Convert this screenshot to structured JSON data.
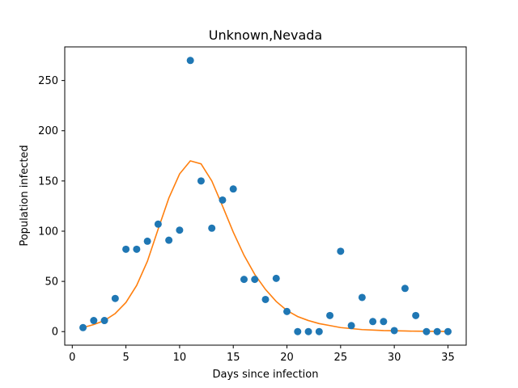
{
  "chart_data": {
    "type": "scatter",
    "title": "Unknown,Nevada",
    "xlabel": "Days since infection",
    "ylabel": "Population infected",
    "xlim": [
      -0.7,
      36.7
    ],
    "ylim": [
      -13.5,
      283.5
    ],
    "xticks": [
      0,
      5,
      10,
      15,
      20,
      25,
      30,
      35
    ],
    "yticks": [
      0,
      50,
      100,
      150,
      200,
      250
    ],
    "grid": false,
    "colors": {
      "scatter": "#1f77b4",
      "fit": "#ff7f0e"
    },
    "series": [
      {
        "kind": "scatter",
        "x": [
          1,
          2,
          3,
          4,
          5,
          6,
          7,
          8,
          9,
          10,
          11,
          12,
          13,
          14,
          15,
          16,
          17,
          18,
          19,
          20,
          21,
          22,
          23,
          24,
          25,
          26,
          27,
          28,
          29,
          30,
          31,
          32,
          33,
          34,
          35
        ],
        "y": [
          4,
          11,
          11,
          33,
          82,
          82,
          90,
          107,
          91,
          101,
          270,
          150,
          103,
          131,
          142,
          52,
          52,
          32,
          53,
          20,
          0,
          0,
          0,
          16,
          80,
          6,
          34,
          10,
          10,
          1,
          43,
          16,
          0,
          0,
          0
        ]
      },
      {
        "kind": "line",
        "x": [
          1,
          2,
          3,
          4,
          5,
          6,
          7,
          8,
          9,
          10,
          11,
          12,
          13,
          14,
          15,
          16,
          17,
          18,
          19,
          20,
          21,
          22,
          23,
          24,
          25,
          26,
          27,
          28,
          29,
          30,
          31,
          32,
          33,
          34,
          35
        ],
        "y": [
          4,
          7,
          11,
          18,
          29,
          46,
          70,
          102,
          133,
          157,
          170,
          167,
          150,
          125,
          99,
          76,
          57,
          42,
          30,
          21,
          15,
          11,
          8,
          6,
          4,
          3,
          2,
          1.5,
          1,
          0.8,
          0.6,
          0.4,
          0.3,
          0.2,
          0.1
        ]
      }
    ]
  }
}
